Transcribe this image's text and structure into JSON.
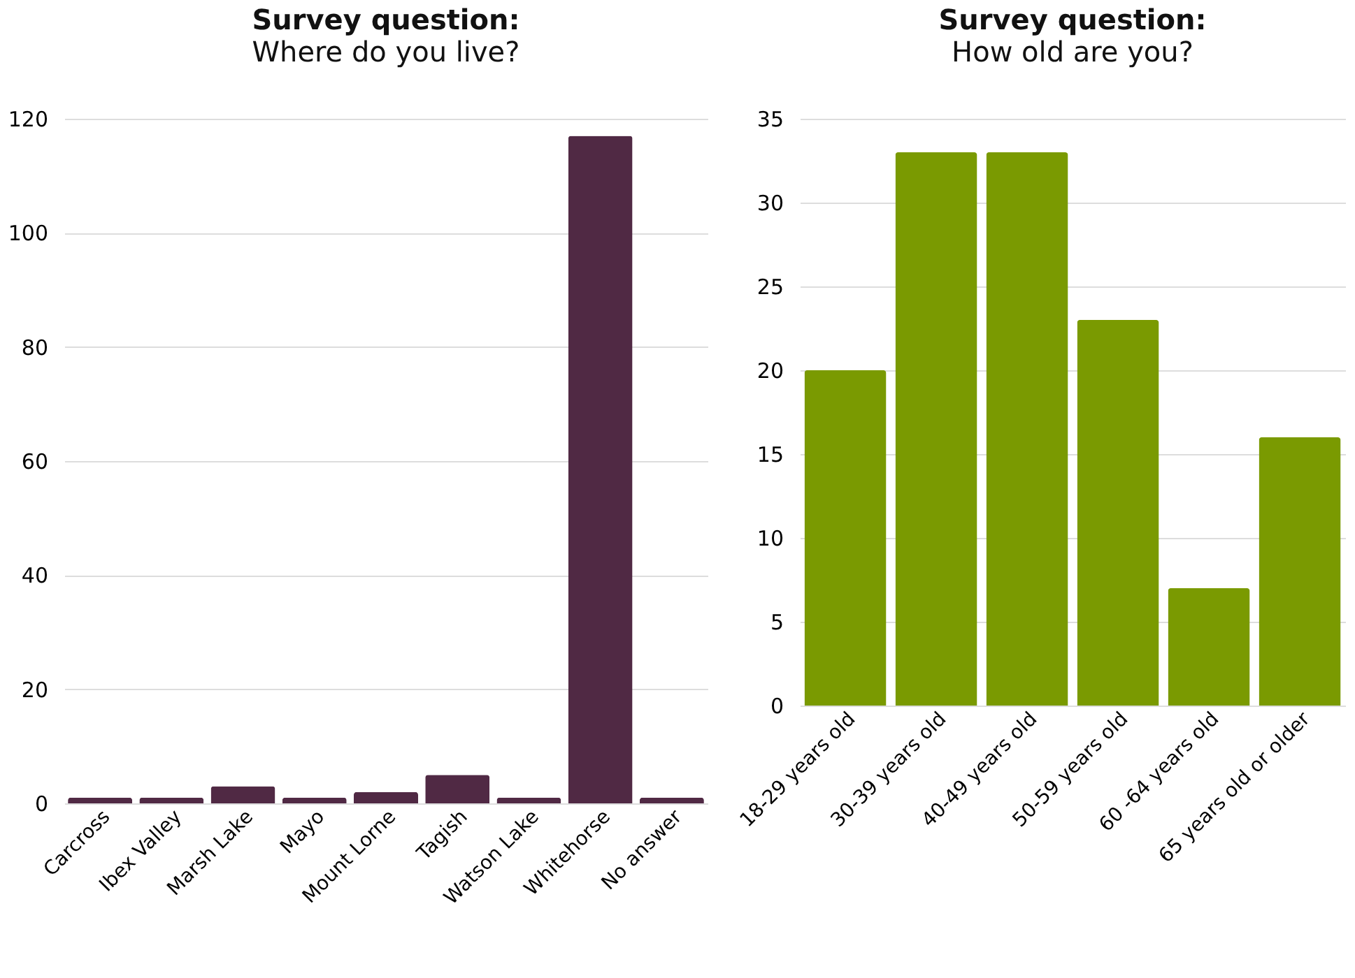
{
  "chart_data": [
    {
      "type": "bar",
      "title": "Survey question:",
      "subtitle": "Where do you live?",
      "categories": [
        "Carcross",
        "Ibex Valley",
        "Marsh Lake",
        "Mayo",
        "Mount Lorne",
        "Tagish",
        "Watson Lake",
        "Whitehorse",
        "No answer"
      ],
      "values": [
        1,
        1,
        3,
        1,
        2,
        5,
        1,
        117,
        1
      ],
      "color": "#502944",
      "ylim": [
        0,
        120
      ],
      "yticks": [
        0,
        20,
        40,
        60,
        80,
        100,
        120
      ],
      "grid": "y"
    },
    {
      "type": "bar",
      "title": "Survey question:",
      "subtitle": "How old are you?",
      "categories": [
        "18-29 years old",
        "30-39 years old",
        "40-49 years old",
        "50-59 years old",
        "60 -64 years old",
        "65 years old or older"
      ],
      "values": [
        20,
        33,
        33,
        23,
        7,
        16
      ],
      "color": "#7a9a01",
      "ylim": [
        0,
        35
      ],
      "yticks": [
        0,
        5,
        10,
        15,
        20,
        25,
        30,
        35
      ],
      "grid": "y"
    }
  ]
}
